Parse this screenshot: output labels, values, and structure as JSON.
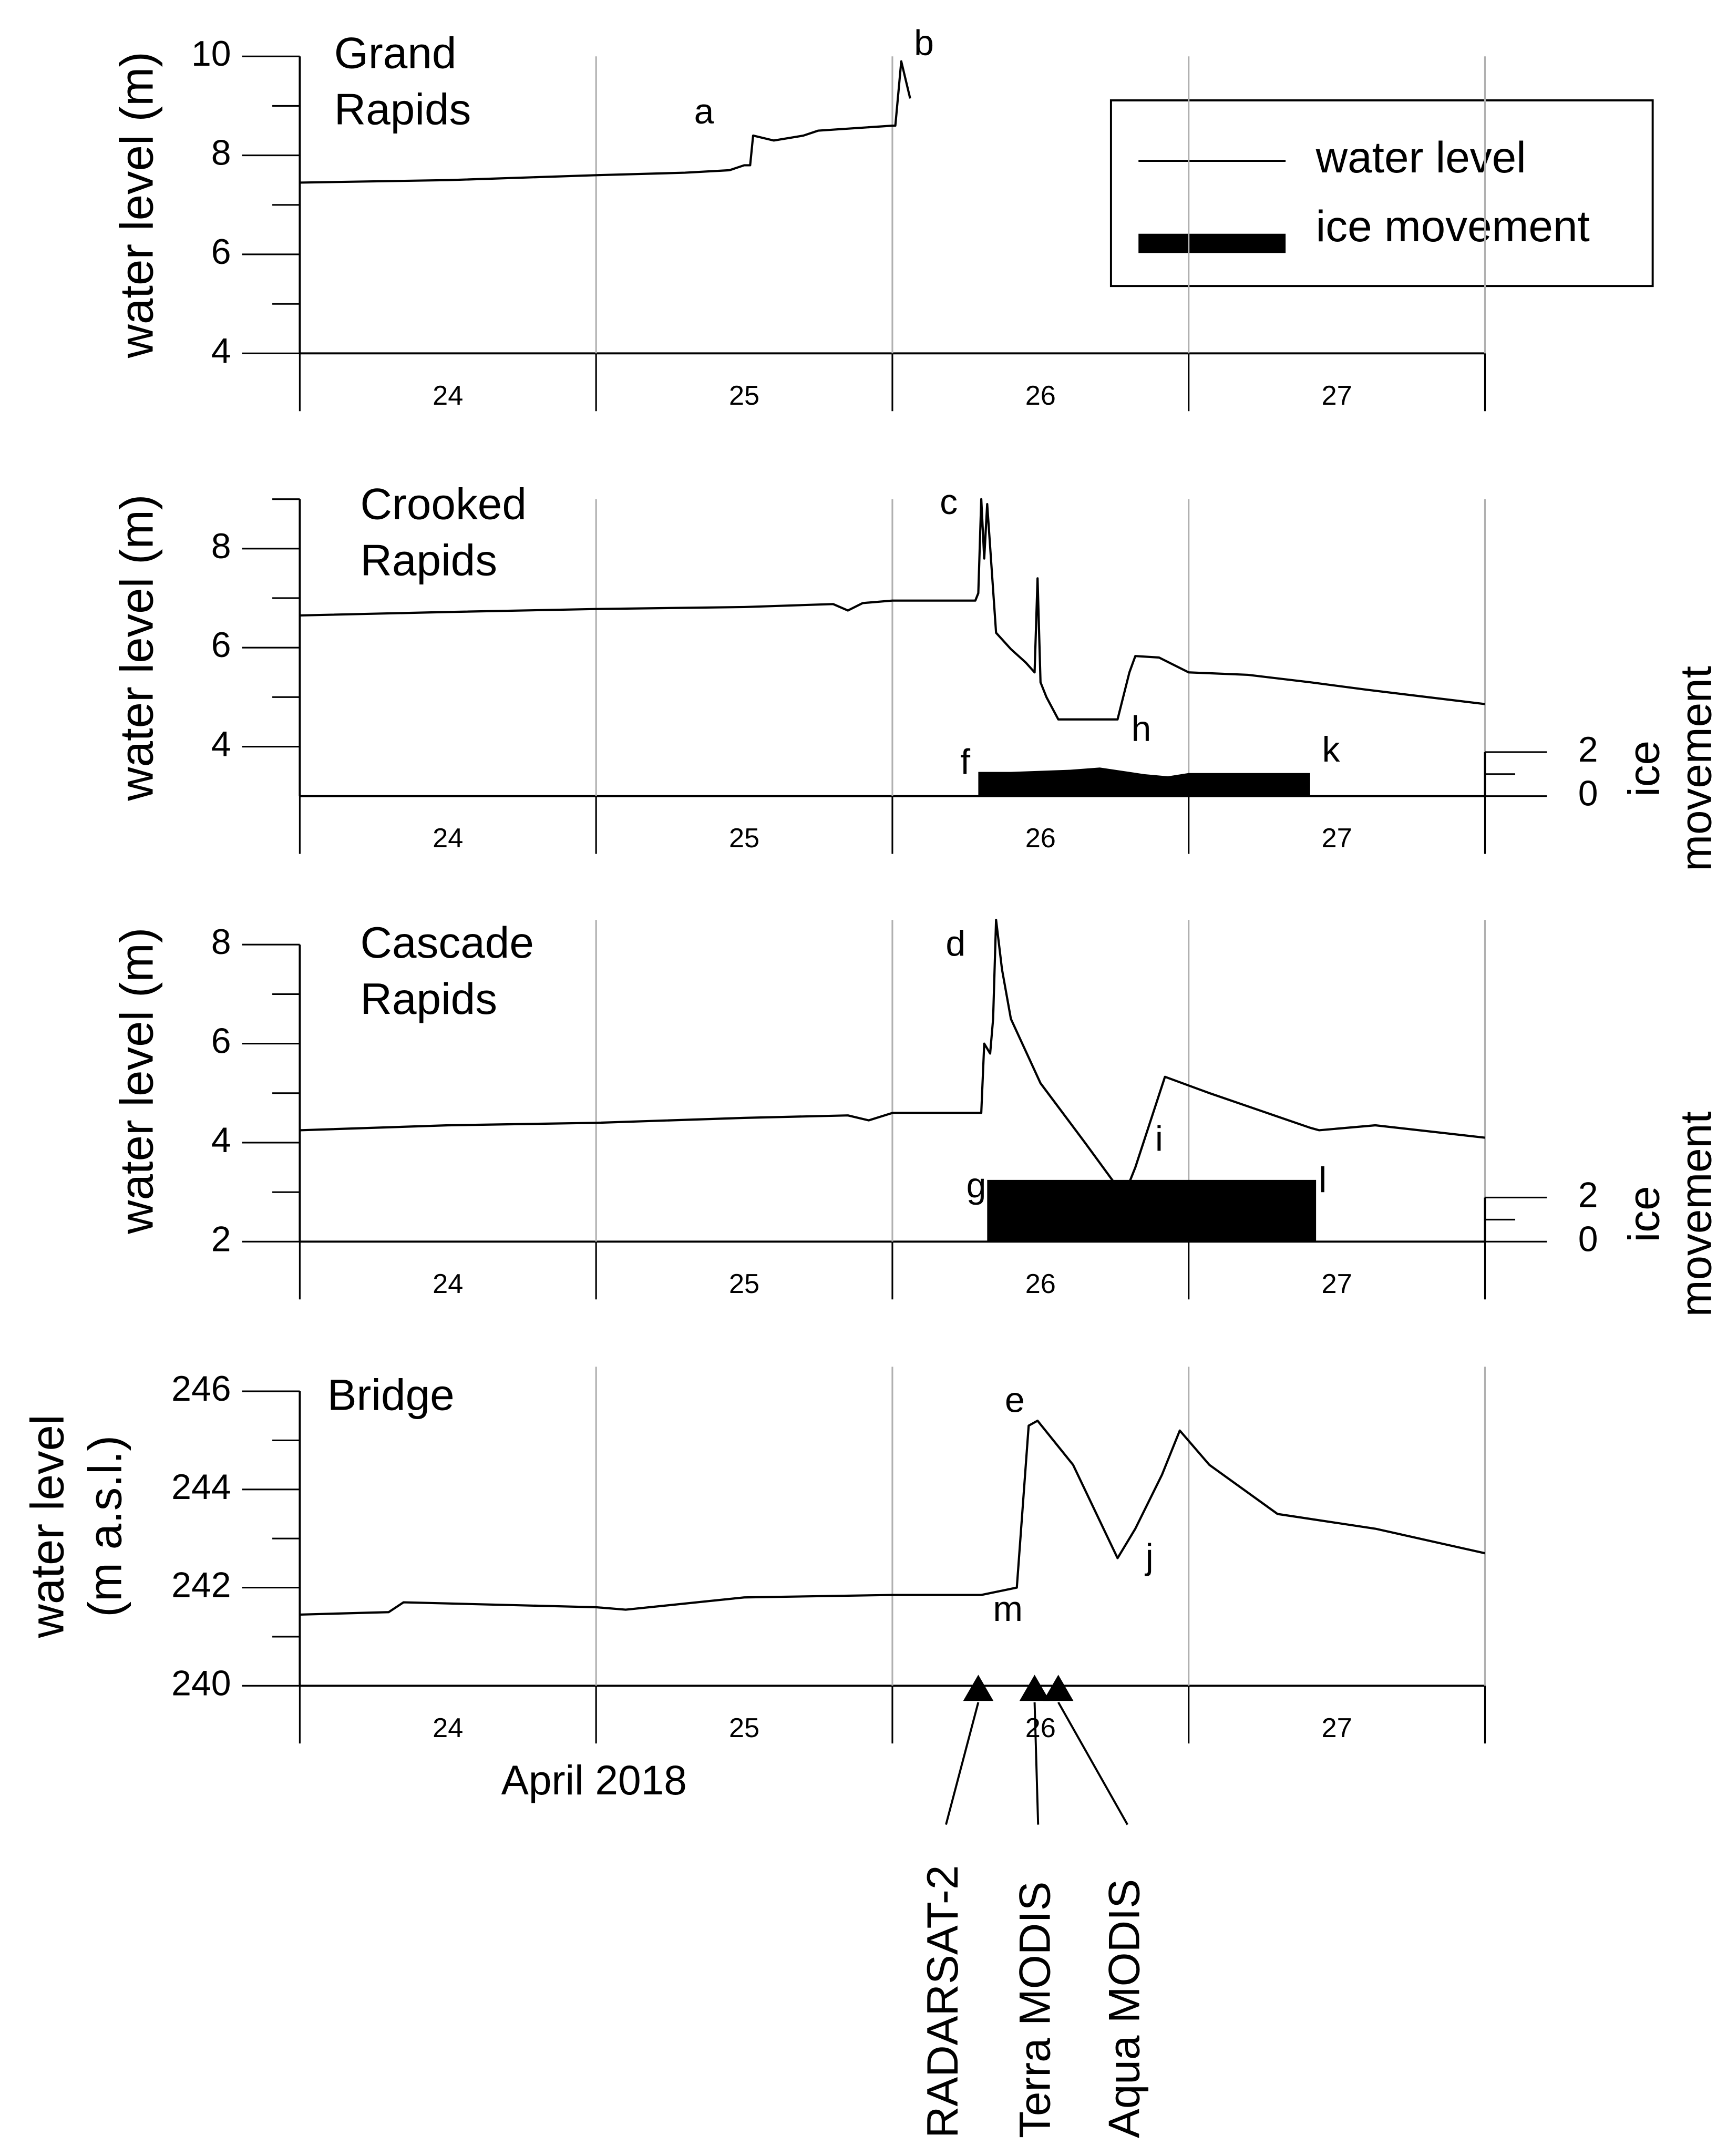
{
  "chart_data": [
    {
      "type": "line",
      "title": [
        "Grand",
        "Rapids"
      ],
      "ylabel": [
        "water level (m)"
      ],
      "categories": [
        "24",
        "25",
        "26",
        "27"
      ],
      "xlim": [
        24,
        28
      ],
      "xticks": [
        24,
        25,
        26,
        27,
        28
      ],
      "ylim": [
        4,
        10
      ],
      "yticks": [
        4,
        6,
        8,
        10
      ],
      "yminorticks": [
        5,
        7,
        9
      ],
      "grid": true,
      "legend": "upper right",
      "series": [
        {
          "name": "water level",
          "color": "#000000",
          "x": [
            24.0,
            24.5,
            25.0,
            25.3,
            25.45,
            25.5,
            25.52,
            25.53,
            25.6,
            25.7,
            25.75,
            26.0,
            26.01,
            26.03,
            26.06
          ],
          "values": [
            7.45,
            7.5,
            7.6,
            7.65,
            7.7,
            7.8,
            7.8,
            8.4,
            8.3,
            8.4,
            8.5,
            8.6,
            8.6,
            9.9,
            9.15
          ]
        }
      ],
      "annotations": [
        "a",
        "b"
      ]
    },
    {
      "type": "line",
      "title": [
        "Crooked",
        "Rapids"
      ],
      "ylabel": [
        "water level (m)"
      ],
      "y2label": [
        "ice",
        "movement"
      ],
      "categories": [
        "24",
        "25",
        "26",
        "27"
      ],
      "xlim": [
        24,
        28
      ],
      "xticks": [
        24,
        25,
        26,
        27,
        28
      ],
      "ylim": [
        3,
        9
      ],
      "yticks": [
        4,
        6,
        8
      ],
      "yminorticks": [
        5,
        7,
        9
      ],
      "y2lim": [
        0,
        13.5
      ],
      "y2ticks": [
        0,
        2
      ],
      "y2minorticks": [
        1
      ],
      "grid": true,
      "series": [
        {
          "name": "water level",
          "color": "#000000",
          "x": [
            24.0,
            24.5,
            25.0,
            25.5,
            25.8,
            25.85,
            25.9,
            26.0,
            26.28,
            26.29,
            26.3,
            26.31,
            26.32,
            26.35,
            26.4,
            26.45,
            26.48,
            26.49,
            26.5,
            26.52,
            26.56,
            26.76,
            26.8,
            26.82,
            26.9,
            27.0,
            27.2,
            27.41,
            27.6,
            28.0
          ],
          "values": [
            6.65,
            6.72,
            6.78,
            6.82,
            6.88,
            6.75,
            6.9,
            6.95,
            6.95,
            7.1,
            9.0,
            7.8,
            8.9,
            6.3,
            5.97,
            5.7,
            5.5,
            7.4,
            5.3,
            5.0,
            4.55,
            4.55,
            5.5,
            5.83,
            5.8,
            5.5,
            5.45,
            5.3,
            5.15,
            4.86
          ]
        },
        {
          "name": "ice movement",
          "color": "#000000",
          "axis": "y2",
          "style": "area",
          "x": [
            26.29,
            26.4,
            26.6,
            26.7,
            26.85,
            26.93,
            27.0,
            27.2,
            27.41
          ],
          "values": [
            1.1,
            1.1,
            1.2,
            1.3,
            1.0,
            0.9,
            1.05,
            1.05,
            1.05
          ]
        }
      ],
      "annotations": [
        "c",
        "f",
        "h",
        "k"
      ]
    },
    {
      "type": "line",
      "title": [
        "Cascade",
        "Rapids"
      ],
      "ylabel": [
        "water level (m)"
      ],
      "y2label": [
        "ice",
        "movement"
      ],
      "categories": [
        "24",
        "25",
        "26",
        "27"
      ],
      "xlim": [
        24,
        28
      ],
      "xticks": [
        24,
        25,
        26,
        27,
        28
      ],
      "ylim": [
        2,
        8.5
      ],
      "yticks": [
        2,
        4,
        6,
        8
      ],
      "yminorticks": [
        3,
        5,
        7
      ],
      "y2lim": [
        0,
        14.6
      ],
      "y2ticks": [
        0,
        2
      ],
      "y2minorticks": [
        1
      ],
      "grid": true,
      "series": [
        {
          "name": "water level",
          "color": "#000000",
          "x": [
            24.0,
            24.5,
            25.0,
            25.5,
            25.85,
            25.92,
            26.0,
            26.3,
            26.31,
            26.33,
            26.34,
            26.35,
            26.37,
            26.4,
            26.5,
            26.65,
            26.76,
            26.8,
            26.82,
            26.92,
            27.07,
            27.41,
            27.44,
            27.63,
            28.0
          ],
          "values": [
            4.25,
            4.35,
            4.4,
            4.5,
            4.55,
            4.45,
            4.6,
            4.6,
            6.0,
            5.8,
            6.5,
            8.5,
            7.5,
            6.5,
            5.2,
            4.0,
            3.1,
            3.2,
            3.5,
            5.33,
            5.0,
            4.3,
            4.25,
            4.35,
            4.1
          ]
        },
        {
          "name": "ice movement",
          "color": "#000000",
          "axis": "y2",
          "style": "area",
          "x": [
            26.32,
            26.6,
            26.9,
            27.2,
            27.43
          ],
          "values": [
            2.8,
            2.8,
            2.8,
            2.8,
            2.8
          ]
        }
      ],
      "annotations": [
        "d",
        "g",
        "i",
        "l"
      ]
    },
    {
      "type": "line",
      "title": [
        "Bridge"
      ],
      "ylabel": [
        "water level",
        "(m a.s.l.)"
      ],
      "xlabel": "April 2018",
      "categories": [
        "24",
        "25",
        "26",
        "27"
      ],
      "xlim": [
        24,
        28
      ],
      "xticks": [
        24,
        25,
        26,
        27,
        28
      ],
      "ylim": [
        240,
        246.5
      ],
      "yticks": [
        240,
        242,
        244,
        246
      ],
      "yminorticks": [
        241,
        243,
        245
      ],
      "grid": true,
      "series": [
        {
          "name": "water level",
          "color": "#000000",
          "x": [
            24.0,
            24.3,
            24.35,
            25.0,
            25.1,
            25.5,
            26.0,
            26.3,
            26.42,
            26.46,
            26.49,
            26.61,
            26.76,
            26.82,
            26.91,
            26.97,
            27.07,
            27.3,
            27.63,
            28.0
          ],
          "values": [
            241.45,
            241.5,
            241.7,
            241.6,
            241.55,
            241.8,
            241.85,
            241.85,
            242.0,
            245.3,
            245.4,
            244.5,
            242.6,
            243.2,
            244.3,
            245.2,
            244.5,
            243.5,
            243.2,
            242.7
          ]
        }
      ],
      "events": [
        {
          "label": "RADARSAT-2",
          "x": 26.29
        },
        {
          "label": "Terra MODIS",
          "x": 26.48
        },
        {
          "label": "Aqua MODIS",
          "x": 26.56
        }
      ],
      "annotations": [
        "e",
        "j",
        "m"
      ]
    }
  ]
}
